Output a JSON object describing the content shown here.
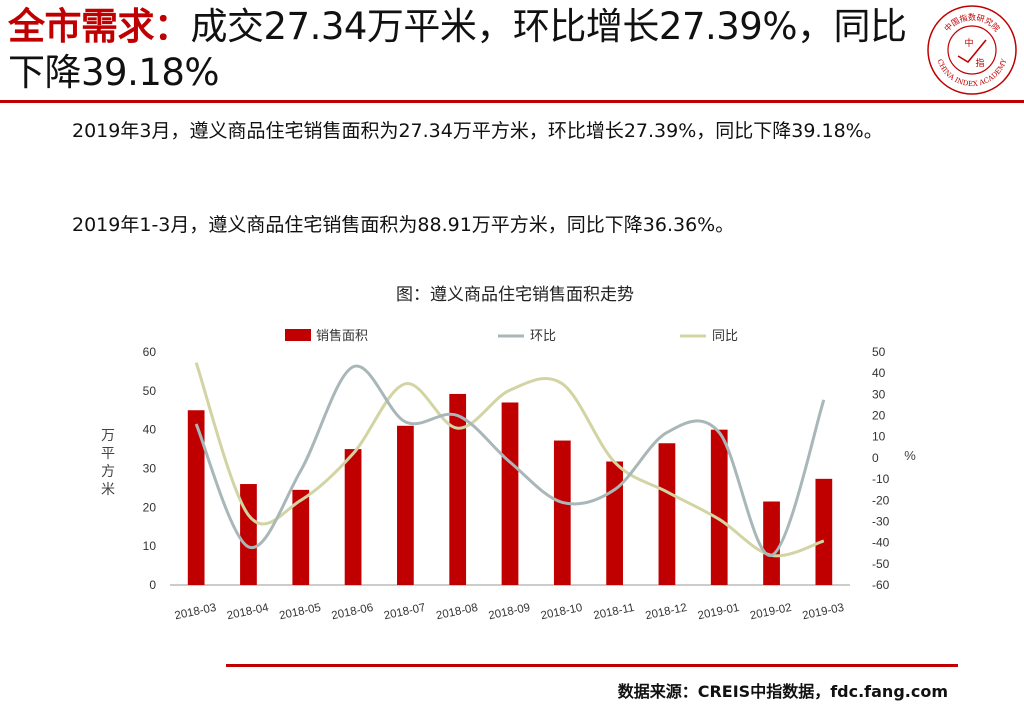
{
  "title": {
    "keyword": "全市需求：",
    "rest": "成交27.34万平米，环比增长27.39%，同比下降39.18%"
  },
  "logo": {
    "arc_text": "CHINA INDEX ACADEMY",
    "top_text": "中国指数研究院",
    "center_top": "中",
    "center_bottom": "指"
  },
  "paragraphs": [
    "2019年3月，遵义商品住宅销售面积为27.34万平方米，环比增长27.39%，同比下降39.18%。",
    "2019年1-3月，遵义商品住宅销售面积为88.91万平方米，同比下降36.36%。"
  ],
  "source": "数据来源：CREIS中指数据，fdc.fang.com",
  "colors": {
    "accent": "#c00000",
    "bar": "#c00000",
    "mom": "#a9b7b8",
    "yoy": "#d2d4a4"
  },
  "chart_data": {
    "type": "bar",
    "title": "图：遵义商品住宅销售面积走势",
    "categories": [
      "2018-03",
      "2018-04",
      "2018-05",
      "2018-06",
      "2018-07",
      "2018-08",
      "2018-09",
      "2018-10",
      "2018-11",
      "2018-12",
      "2019-01",
      "2019-02",
      "2019-03"
    ],
    "ylabel": "万平方米",
    "y2label": "%",
    "ylim": [
      0,
      60
    ],
    "y2lim": [
      -60,
      50
    ],
    "yticks": [
      0,
      10,
      20,
      30,
      40,
      50,
      60
    ],
    "y2ticks": [
      50,
      40,
      30,
      20,
      10,
      0,
      -10,
      -20,
      -30,
      -40,
      -50,
      -60
    ],
    "legend_position": "top",
    "series": [
      {
        "name": "销售面积",
        "kind": "bar",
        "axis": "left",
        "values": [
          45.0,
          26.0,
          24.5,
          35.0,
          41.0,
          49.2,
          47.0,
          37.2,
          31.8,
          36.5,
          40.0,
          21.5,
          27.34
        ]
      },
      {
        "name": "环比",
        "kind": "line",
        "axis": "right",
        "values": [
          16.0,
          -42.0,
          -6.0,
          43.0,
          17.0,
          20.0,
          -2.0,
          -21.0,
          -15.0,
          12.0,
          12.0,
          -46.0,
          27.39
        ]
      },
      {
        "name": "同比",
        "kind": "line",
        "axis": "right",
        "values": [
          45.0,
          -27.0,
          -20.0,
          2.0,
          35.0,
          14.0,
          32.0,
          35.0,
          -2.0,
          -16.0,
          -29.0,
          -46.0,
          -39.18
        ]
      }
    ]
  }
}
